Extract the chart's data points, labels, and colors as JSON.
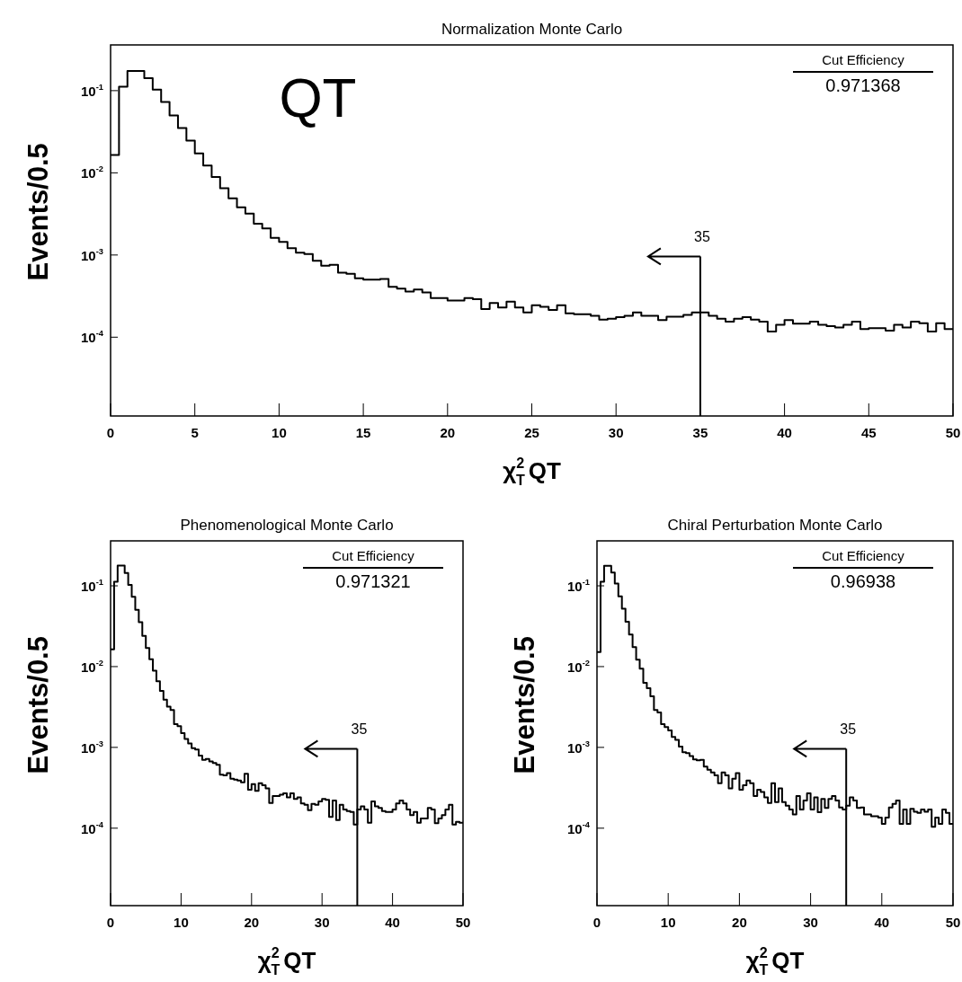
{
  "chart_data": [
    {
      "type": "histogram",
      "title": "Normalization Monte Carlo",
      "xlabel": "χ$_{T}$$^{2}$ QT",
      "ylabel": "Events/0.5",
      "color": "#000000",
      "log": "y",
      "annotations": [
        "QT",
        "Cut Efficiency",
        "0.971368"
      ],
      "ref_lines": [
        {
          "axis": "x",
          "value": 35,
          "label": "35"
        }
      ],
      "xlim": [
        0,
        50
      ],
      "xticks": [
        0,
        5,
        10,
        15,
        20,
        25,
        30,
        35,
        40,
        45,
        50
      ],
      "ylim": [
        1.1e-05,
        0.36
      ],
      "yticks": [
        {
          "value": 0.1,
          "label": "10$^{-1}$"
        },
        {
          "value": 0.01,
          "label": "10$^{-2}$"
        },
        {
          "value": 0.001,
          "label": "10$^{-3}$"
        },
        {
          "value": 0.0001,
          "label": "10$^{-4}$"
        }
      ],
      "bins": [
        0,
        0.5,
        1,
        1.5,
        2,
        2.5,
        3,
        3.5,
        4,
        4.5,
        5,
        5.5,
        6,
        6.5,
        7,
        7.5,
        8,
        8.5,
        9,
        9.5,
        10,
        10.5,
        11,
        11.5,
        12,
        12.5,
        13,
        13.5,
        14,
        14.5,
        15,
        15.5,
        16,
        16.5,
        17,
        17.5,
        18,
        18.5,
        19,
        19.5,
        20,
        20.5,
        21,
        21.5,
        22,
        22.5,
        23,
        23.5,
        24,
        24.5,
        25,
        25.5,
        26,
        26.5,
        27,
        27.5,
        28,
        28.5,
        29,
        29.5,
        30,
        30.5,
        31,
        31.5,
        32,
        32.5,
        33,
        33.5,
        34,
        34.5,
        35,
        35.5,
        36,
        36.5,
        37,
        37.5,
        38,
        38.5,
        39,
        39.5,
        40,
        40.5,
        41,
        41.5,
        42,
        42.5,
        43,
        43.5,
        44,
        44.5,
        45,
        45.5,
        46,
        46.5,
        47,
        47.5,
        48,
        48.5,
        49,
        49.5,
        50
      ],
      "values": [
        0.0165,
        0.112,
        0.174,
        0.174,
        0.142,
        0.103,
        0.073,
        0.05,
        0.035,
        0.0247,
        0.0172,
        0.0123,
        0.0089,
        0.0065,
        0.0049,
        0.0038,
        0.0032,
        0.0024,
        0.0021,
        0.00162,
        0.00144,
        0.00121,
        0.00107,
        0.00103,
        0.00085,
        0.00074,
        0.00076,
        0.00061,
        0.00059,
        0.00052,
        0.0005,
        0.0005,
        0.00051,
        0.00041,
        0.00039,
        0.00036,
        0.00038,
        0.00035,
        0.0003,
        0.0003,
        0.00028,
        0.00028,
        0.0003,
        0.00029,
        0.00022,
        0.00026,
        0.00023,
        0.00027,
        0.00023,
        0.0002,
        0.000245,
        0.000234,
        0.000215,
        0.000245,
        0.000195,
        0.00019,
        0.00019,
        0.000182,
        0.000164,
        0.000168,
        0.000175,
        0.000182,
        0.0002,
        0.000182,
        0.000182,
        0.000162,
        0.000178,
        0.000178,
        0.000187,
        0.0002,
        0.0002,
        0.000182,
        0.000168,
        0.000155,
        0.000168,
        0.000175,
        0.000164,
        0.000155,
        0.000117,
        0.000142,
        0.000162,
        0.000146,
        0.000146,
        0.000155,
        0.000142,
        0.000136,
        0.000131,
        0.000142,
        0.000155,
        0.000126,
        0.000129,
        0.000129,
        0.00012,
        0.000142,
        0.000131,
        0.000155,
        0.000148,
        0.000117,
        0.000148,
        0.000126
      ]
    },
    {
      "type": "histogram",
      "title": "Phenomenological Monte Carlo",
      "xlabel": "χ$_{T}$$^{2}$ QT",
      "ylabel": "Events/0.5",
      "color": "#000000",
      "log": "y",
      "annotations": [
        "Cut Efficiency",
        "0.971321"
      ],
      "ref_lines": [
        {
          "axis": "x",
          "value": 35,
          "label": "35"
        }
      ],
      "xlim": [
        0,
        50
      ],
      "xticks": [
        0,
        10,
        20,
        30,
        40,
        50
      ],
      "ylim": [
        1.1e-05,
        0.36
      ],
      "yticks": [
        {
          "value": 0.1,
          "label": "10$^{-1}$"
        },
        {
          "value": 0.01,
          "label": "10$^{-2}$"
        },
        {
          "value": 0.001,
          "label": "10$^{-3}$"
        },
        {
          "value": 0.0001,
          "label": "10$^{-4}$"
        }
      ],
      "bins": [
        0,
        0.5,
        1,
        1.5,
        2,
        2.5,
        3,
        3.5,
        4,
        4.5,
        5,
        5.5,
        6,
        6.5,
        7,
        7.5,
        8,
        8.5,
        9,
        9.5,
        10,
        10.5,
        11,
        11.5,
        12,
        12.5,
        13,
        13.5,
        14,
        14.5,
        15,
        15.5,
        16,
        16.5,
        17,
        17.5,
        18,
        18.5,
        19,
        19.5,
        20,
        20.5,
        21,
        21.5,
        22,
        22.5,
        23,
        23.5,
        24,
        24.5,
        25,
        25.5,
        26,
        26.5,
        27,
        27.5,
        28,
        28.5,
        29,
        29.5,
        30,
        30.5,
        31,
        31.5,
        32,
        32.5,
        33,
        33.5,
        34,
        34.5,
        35,
        35.5,
        36,
        36.5,
        37,
        37.5,
        38,
        38.5,
        39,
        39.5,
        40,
        40.5,
        41,
        41.5,
        42,
        42.5,
        43,
        43.5,
        44,
        44.5,
        45,
        45.5,
        46,
        46.5,
        47,
        47.5,
        48,
        48.5,
        49,
        49.5,
        50
      ],
      "values": [
        0.0164,
        0.112,
        0.178,
        0.178,
        0.144,
        0.1025,
        0.073,
        0.0506,
        0.0355,
        0.024,
        0.017,
        0.0123,
        0.0089,
        0.0066,
        0.005,
        0.0039,
        0.0032,
        0.0029,
        0.00194,
        0.00183,
        0.0015,
        0.00127,
        0.00112,
        0.00098,
        0.00094,
        0.00079,
        0.0007,
        0.00072,
        0.00067,
        0.00064,
        0.00061,
        0.00046,
        0.00045,
        0.00048,
        0.00041,
        0.0004,
        0.00039,
        0.00037,
        0.00047,
        0.0003,
        0.00035,
        0.00029,
        0.00036,
        0.00034,
        0.00031,
        0.000205,
        0.00025,
        0.00025,
        0.00026,
        0.00027,
        0.00024,
        0.00027,
        0.00023,
        0.00024,
        0.000203,
        0.000195,
        0.000167,
        0.0002,
        0.000195,
        0.000214,
        0.00023,
        0.000225,
        0.000138,
        0.00022,
        0.000126,
        0.000195,
        0.00017,
        0.000163,
        0.000159,
        0.000111,
        0.00017,
        0.000186,
        0.00017,
        0.000117,
        0.000214,
        0.000186,
        0.000178,
        0.000163,
        0.000159,
        0.000159,
        0.00017,
        0.000203,
        0.00022,
        0.000203,
        0.00017,
        0.000145,
        0.000159,
        0.000117,
        0.000132,
        0.000132,
        0.000178,
        0.00017,
        0.000115,
        0.000132,
        0.000145,
        0.00017,
        0.000195,
        0.000111,
        0.00012,
        0.000117
      ]
    },
    {
      "type": "histogram",
      "title": "Chiral Perturbation Monte Carlo",
      "xlabel": "χ$_{T}$$^{2}$ QT",
      "ylabel": "Events/0.5",
      "color": "#000000",
      "log": "y",
      "annotations": [
        "Cut Efficiency",
        "0.96938"
      ],
      "ref_lines": [
        {
          "axis": "x",
          "value": 35,
          "label": "35"
        }
      ],
      "xlim": [
        0,
        50
      ],
      "xticks": [
        0,
        10,
        20,
        30,
        40,
        50
      ],
      "ylim": [
        1.1e-05,
        0.36
      ],
      "yticks": [
        {
          "value": 0.1,
          "label": "10$^{-1}$"
        },
        {
          "value": 0.01,
          "label": "10$^{-2}$"
        },
        {
          "value": 0.001,
          "label": "10$^{-3}$"
        },
        {
          "value": 0.0001,
          "label": "10$^{-4}$"
        }
      ],
      "bins": [
        0,
        0.5,
        1,
        1.5,
        2,
        2.5,
        3,
        3.5,
        4,
        4.5,
        5,
        5.5,
        6,
        6.5,
        7,
        7.5,
        8,
        8.5,
        9,
        9.5,
        10,
        10.5,
        11,
        11.5,
        12,
        12.5,
        13,
        13.5,
        14,
        14.5,
        15,
        15.5,
        16,
        16.5,
        17,
        17.5,
        18,
        18.5,
        19,
        19.5,
        20,
        20.5,
        21,
        21.5,
        22,
        22.5,
        23,
        23.5,
        24,
        24.5,
        25,
        25.5,
        26,
        26.5,
        27,
        27.5,
        28,
        28.5,
        29,
        29.5,
        30,
        30.5,
        31,
        31.5,
        32,
        32.5,
        33,
        33.5,
        34,
        34.5,
        35,
        35.5,
        36,
        36.5,
        37,
        37.5,
        38,
        38.5,
        39,
        39.5,
        40,
        40.5,
        41,
        41.5,
        42,
        42.5,
        43,
        43.5,
        44,
        44.5,
        45,
        45.5,
        46,
        46.5,
        47,
        47.5,
        48,
        48.5,
        49,
        49.5,
        50
      ],
      "values": [
        0.0151,
        0.112,
        0.177,
        0.177,
        0.146,
        0.107,
        0.074,
        0.052,
        0.036,
        0.025,
        0.0174,
        0.0122,
        0.0094,
        0.0063,
        0.0054,
        0.0043,
        0.0029,
        0.0027,
        0.00194,
        0.00178,
        0.00162,
        0.00135,
        0.00124,
        0.00102,
        0.00087,
        0.00085,
        0.00078,
        0.00071,
        0.00069,
        0.0007,
        0.00058,
        0.00053,
        0.00049,
        0.00045,
        0.00036,
        0.00049,
        0.00045,
        0.00031,
        0.00041,
        0.00048,
        0.0003,
        0.00034,
        0.00039,
        0.00036,
        0.00025,
        0.0003,
        0.00028,
        0.00024,
        0.000205,
        0.00036,
        0.00021,
        0.00031,
        0.00021,
        0.00019,
        0.00017,
        0.000148,
        0.00025,
        0.00017,
        0.00022,
        0.00027,
        0.00017,
        0.00024,
        0.000158,
        0.00023,
        0.000178,
        0.00023,
        0.00025,
        0.00022,
        0.00018,
        0.00017,
        0.00019,
        0.00024,
        0.00022,
        0.000178,
        0.00018,
        0.000148,
        0.000148,
        0.000141,
        0.000141,
        0.000135,
        0.000113,
        0.000135,
        0.00018,
        0.0002,
        0.00022,
        0.000113,
        0.00017,
        0.000113,
        0.000174,
        0.00016,
        0.000155,
        0.00017,
        0.00016,
        0.00017,
        0.000104,
        0.000135,
        0.000113,
        0.00017,
        0.000155,
        0.000113
      ]
    }
  ]
}
